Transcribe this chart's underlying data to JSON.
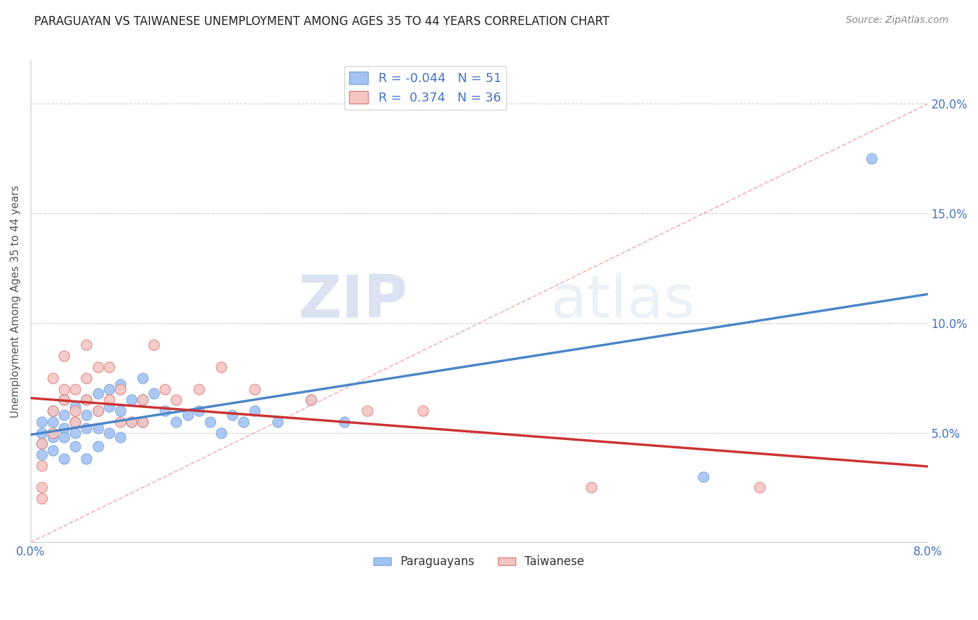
{
  "title": "PARAGUAYAN VS TAIWANESE UNEMPLOYMENT AMONG AGES 35 TO 44 YEARS CORRELATION CHART",
  "source": "Source: ZipAtlas.com",
  "ylabel": "Unemployment Among Ages 35 to 44 years",
  "xlim": [
    0.0,
    0.08
  ],
  "ylim": [
    0.0,
    0.22
  ],
  "x_ticks": [
    0.0,
    0.08
  ],
  "x_tick_labels": [
    "0.0%",
    "8.0%"
  ],
  "y_ticks": [
    0.05,
    0.1,
    0.15,
    0.2
  ],
  "y_tick_labels": [
    "5.0%",
    "10.0%",
    "15.0%",
    "20.0%"
  ],
  "paraguayan_color": "#a4c2f4",
  "taiwanese_color": "#f4c7c3",
  "paraguayan_trend_color": "#4a86c8",
  "taiwanese_trend_color": "#cc3333",
  "legend_r_paraguayan": "-0.044",
  "legend_n_paraguayan": "51",
  "legend_r_taiwanese": "0.374",
  "legend_n_taiwanese": "36",
  "background_color": "#ffffff",
  "grid_color": "#cccccc",
  "diag_color": "#e8a0a0",
  "paraguayan_x": [
    0.001,
    0.001,
    0.001,
    0.001,
    0.002,
    0.002,
    0.002,
    0.002,
    0.003,
    0.003,
    0.003,
    0.003,
    0.003,
    0.004,
    0.004,
    0.004,
    0.004,
    0.005,
    0.005,
    0.005,
    0.005,
    0.006,
    0.006,
    0.006,
    0.006,
    0.007,
    0.007,
    0.007,
    0.008,
    0.008,
    0.008,
    0.009,
    0.009,
    0.01,
    0.01,
    0.01,
    0.011,
    0.012,
    0.013,
    0.014,
    0.015,
    0.016,
    0.017,
    0.018,
    0.019,
    0.02,
    0.022,
    0.025,
    0.028,
    0.06,
    0.075
  ],
  "paraguayan_y": [
    0.055,
    0.05,
    0.045,
    0.04,
    0.06,
    0.055,
    0.048,
    0.042,
    0.065,
    0.058,
    0.052,
    0.048,
    0.038,
    0.062,
    0.055,
    0.05,
    0.044,
    0.065,
    0.058,
    0.052,
    0.038,
    0.068,
    0.06,
    0.052,
    0.044,
    0.07,
    0.062,
    0.05,
    0.072,
    0.06,
    0.048,
    0.065,
    0.055,
    0.075,
    0.065,
    0.055,
    0.068,
    0.06,
    0.055,
    0.058,
    0.06,
    0.055,
    0.05,
    0.058,
    0.055,
    0.06,
    0.055,
    0.065,
    0.055,
    0.03,
    0.175
  ],
  "taiwanese_x": [
    0.001,
    0.001,
    0.001,
    0.001,
    0.002,
    0.002,
    0.002,
    0.003,
    0.003,
    0.003,
    0.004,
    0.004,
    0.004,
    0.005,
    0.005,
    0.005,
    0.006,
    0.006,
    0.007,
    0.007,
    0.008,
    0.008,
    0.009,
    0.01,
    0.01,
    0.011,
    0.012,
    0.013,
    0.015,
    0.017,
    0.02,
    0.025,
    0.03,
    0.035,
    0.05,
    0.065
  ],
  "taiwanese_y": [
    0.02,
    0.035,
    0.045,
    0.025,
    0.05,
    0.06,
    0.075,
    0.065,
    0.07,
    0.085,
    0.06,
    0.07,
    0.055,
    0.075,
    0.065,
    0.09,
    0.06,
    0.08,
    0.065,
    0.08,
    0.07,
    0.055,
    0.055,
    0.065,
    0.055,
    0.09,
    0.07,
    0.065,
    0.07,
    0.08,
    0.07,
    0.065,
    0.06,
    0.06,
    0.025,
    0.025
  ]
}
